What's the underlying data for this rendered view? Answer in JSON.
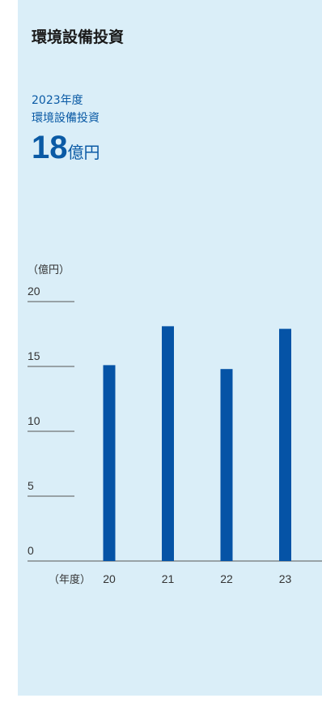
{
  "title": "環境設備投資",
  "highlight": {
    "year": "2023年度",
    "label": "環境設備投資",
    "value": "18",
    "unit": "億円"
  },
  "colors": {
    "bar": "#0553a6",
    "text_blue": "#0a5aa5",
    "panel_bg": "#daeef8"
  },
  "chart_data": {
    "type": "bar",
    "unit_label": "（億円）",
    "x_unit_label": "（年度）",
    "categories": [
      "20",
      "21",
      "22",
      "23"
    ],
    "values": [
      15.1,
      18.1,
      14.8,
      17.9
    ],
    "ylim": [
      0,
      20
    ],
    "yticks": [
      0,
      5,
      10,
      15,
      20
    ],
    "grid": false
  }
}
